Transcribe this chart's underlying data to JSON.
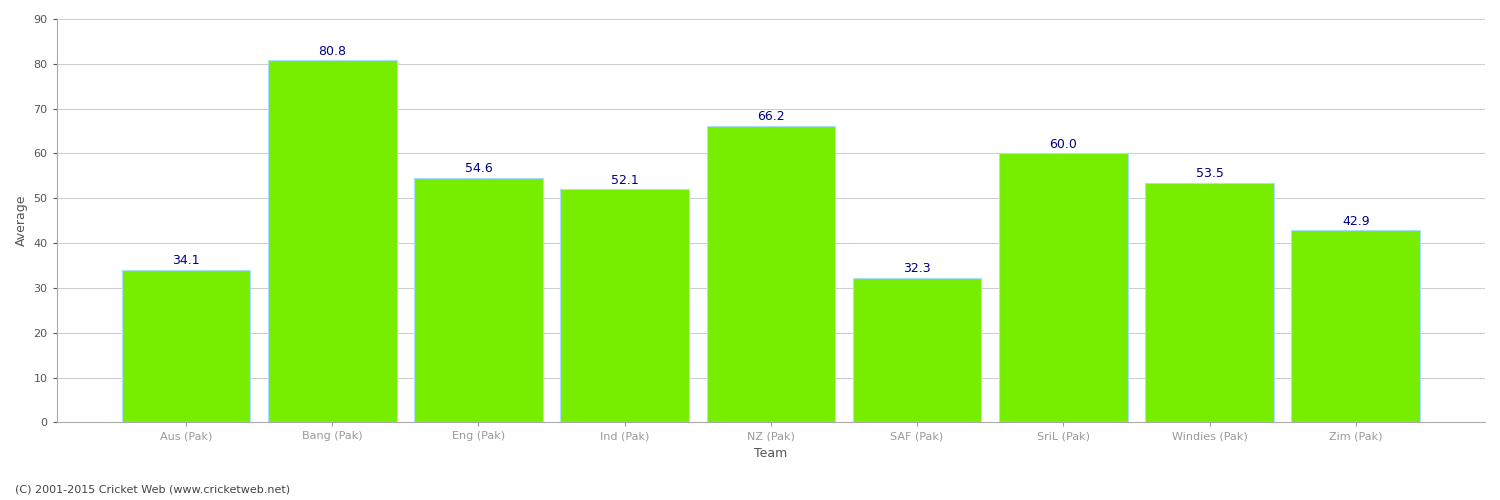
{
  "categories": [
    "Aus (Pak)",
    "Bang (Pak)",
    "Eng (Pak)",
    "Ind (Pak)",
    "NZ (Pak)",
    "SAF (Pak)",
    "SriL (Pak)",
    "Windies (Pak)",
    "Zim (Pak)"
  ],
  "values": [
    34.1,
    80.8,
    54.6,
    52.1,
    66.2,
    32.3,
    60.0,
    53.5,
    42.9
  ],
  "bar_color": "#77ee00",
  "bar_edge_color": "#aaddff",
  "label_color": "#000080",
  "ylabel": "Average",
  "xlabel": "Team",
  "ylim": [
    0,
    90
  ],
  "yticks": [
    0,
    10,
    20,
    30,
    40,
    50,
    60,
    70,
    80,
    90
  ],
  "grid_color": "#cccccc",
  "background_color": "#ffffff",
  "label_fontsize": 9,
  "axis_fontsize": 9,
  "tick_fontsize": 8,
  "bar_width": 0.88,
  "footer_text": "(C) 2001-2015 Cricket Web (www.cricketweb.net)",
  "footer_fontsize": 8,
  "footer_color": "#444444"
}
